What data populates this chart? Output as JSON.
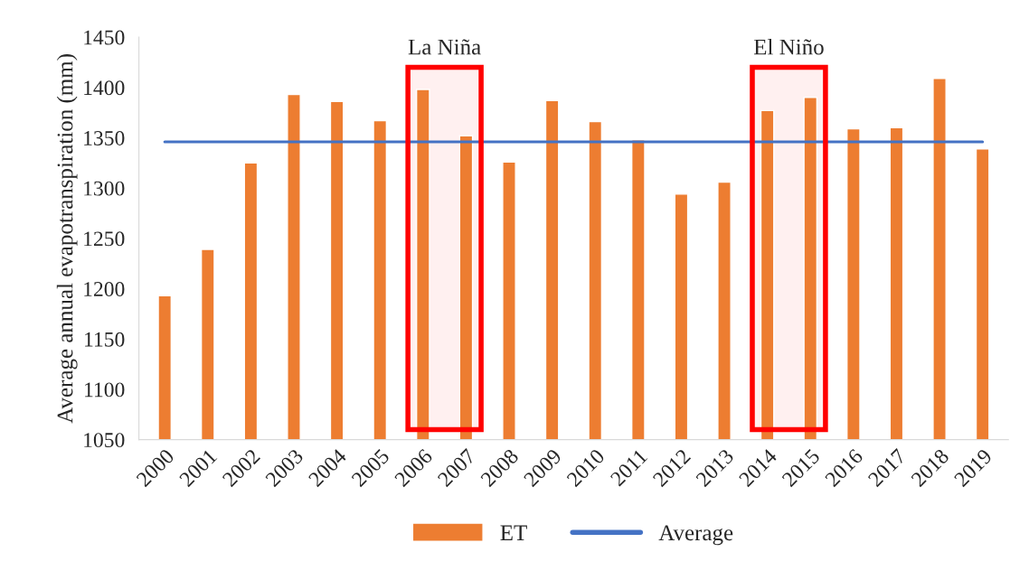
{
  "chart_data": {
    "type": "bar",
    "ylabel": "Average annual evapotranspiration (mm)",
    "categories": [
      "2000",
      "2001",
      "2002",
      "2003",
      "2004",
      "2005",
      "2006",
      "2007",
      "2008",
      "2009",
      "2010",
      "2011",
      "2012",
      "2013",
      "2014",
      "2015",
      "2016",
      "2017",
      "2018",
      "2019"
    ],
    "series": [
      {
        "name": "ET",
        "type": "bar",
        "color": "#ed7d31",
        "values": [
          1193,
          1239,
          1325,
          1393,
          1386,
          1367,
          1398,
          1352,
          1326,
          1387,
          1366,
          1348,
          1294,
          1306,
          1377,
          1390,
          1359,
          1360,
          1409,
          1339
        ]
      },
      {
        "name": "Average",
        "type": "line",
        "color": "#4472c4",
        "values": [
          1346,
          1346,
          1346,
          1346,
          1346,
          1346,
          1346,
          1346,
          1346,
          1346,
          1346,
          1346,
          1346,
          1346,
          1346,
          1346,
          1346,
          1346,
          1346,
          1346
        ]
      }
    ],
    "bands": [
      {
        "axis": "x",
        "from": "2006",
        "to": "2007",
        "label": "La Niña",
        "color": "#ff0000"
      },
      {
        "axis": "x",
        "from": "2014",
        "to": "2015",
        "label": "El Niño",
        "color": "#ff0000"
      }
    ],
    "ylim": [
      1050,
      1450
    ],
    "yticks": [
      1050,
      1100,
      1150,
      1200,
      1250,
      1300,
      1350,
      1400,
      1450
    ],
    "grid": false,
    "legend": "bottom"
  }
}
